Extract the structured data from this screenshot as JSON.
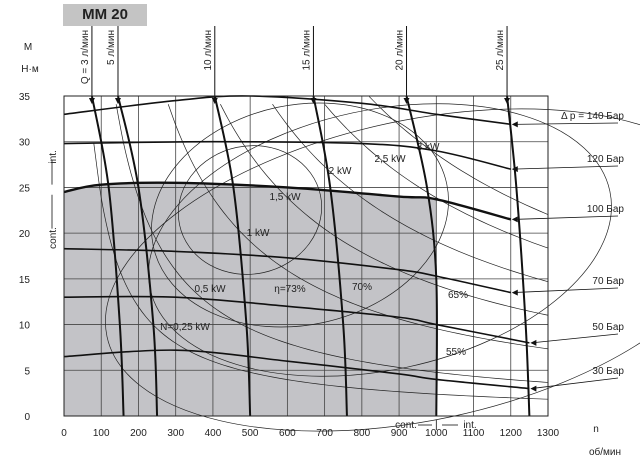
{
  "chart_data": {
    "type": "line",
    "title": "MM 20",
    "ylabel_top": "M",
    "ylabel_unit": "Н·м",
    "xlabel_top": "n",
    "xlabel_unit": "об/мин",
    "xlim": [
      0,
      1300
    ],
    "ylim": [
      0,
      35
    ],
    "x_ticks": [
      "0",
      "100",
      "200",
      "300",
      "400",
      "500",
      "600",
      "700",
      "800",
      "900",
      "1000",
      "1100",
      "1200",
      "1300"
    ],
    "y_ticks": [
      "0",
      "5",
      "10",
      "15",
      "20",
      "25",
      "30",
      "35"
    ],
    "region_labels": {
      "cont": "cont.",
      "int": "int."
    },
    "pressure_lines": [
      {
        "label": "Δ p = 140 Бар",
        "points": [
          [
            0,
            33.0
          ],
          [
            300,
            34.5
          ],
          [
            500,
            35.0
          ],
          [
            800,
            34.2
          ],
          [
            1000,
            33.0
          ],
          [
            1200,
            31.9
          ]
        ]
      },
      {
        "label": "120 Бар",
        "points": [
          [
            0,
            29.8
          ],
          [
            400,
            30.0
          ],
          [
            800,
            29.8
          ],
          [
            1000,
            29.0
          ],
          [
            1200,
            27.0
          ]
        ]
      },
      {
        "label": "100 Бар",
        "points": [
          [
            0,
            24.5
          ],
          [
            100,
            25.3
          ],
          [
            300,
            25.5
          ],
          [
            600,
            25.0
          ],
          [
            900,
            24.0
          ],
          [
            1000,
            23.7
          ],
          [
            1200,
            21.5
          ]
        ]
      },
      {
        "label": "70 Бар",
        "points": [
          [
            0,
            18.3
          ],
          [
            300,
            18.0
          ],
          [
            600,
            17.3
          ],
          [
            900,
            16.0
          ],
          [
            1000,
            15.3
          ],
          [
            1200,
            13.5
          ]
        ]
      },
      {
        "label": "50 Бар",
        "points": [
          [
            0,
            13.0
          ],
          [
            300,
            13.0
          ],
          [
            600,
            12.0
          ],
          [
            900,
            10.8
          ],
          [
            1000,
            10.0
          ],
          [
            1250,
            8.0
          ]
        ]
      },
      {
        "label": "30 Бар",
        "points": [
          [
            0,
            6.5
          ],
          [
            300,
            7.2
          ],
          [
            600,
            6.0
          ],
          [
            900,
            4.6
          ],
          [
            1000,
            4.0
          ],
          [
            1250,
            3.0
          ]
        ]
      }
    ],
    "flow_lines": [
      {
        "label": "Q = 3 л/мин",
        "points": [
          [
            75,
            35
          ],
          [
            120,
            25
          ],
          [
            150,
            10
          ],
          [
            160,
            0
          ]
        ]
      },
      {
        "label": "5 л/мин",
        "points": [
          [
            145,
            35
          ],
          [
            200,
            25
          ],
          [
            240,
            10
          ],
          [
            250,
            0
          ]
        ]
      },
      {
        "label": "10 л/мин",
        "points": [
          [
            405,
            35
          ],
          [
            455,
            25
          ],
          [
            490,
            10
          ],
          [
            500,
            0
          ]
        ]
      },
      {
        "label": "15 л/мин",
        "points": [
          [
            670,
            35
          ],
          [
            715,
            25
          ],
          [
            750,
            10
          ],
          [
            760,
            0
          ]
        ]
      },
      {
        "label": "20 л/мин",
        "points": [
          [
            920,
            35
          ],
          [
            975,
            25
          ],
          [
            1000,
            15
          ],
          [
            1000,
            0
          ]
        ]
      },
      {
        "label": "25 л/мин",
        "points": [
          [
            1190,
            35
          ],
          [
            1215,
            25
          ],
          [
            1240,
            10
          ],
          [
            1250,
            0
          ]
        ]
      }
    ],
    "power_labels": [
      "N=0,25 kW",
      "0,5 kW",
      "1 kW",
      "1,5 kW",
      "2 kW",
      "2,5 kW",
      "3 kW"
    ],
    "efficiency_labels": [
      "η=73%",
      "70%",
      "65%",
      "55%"
    ],
    "shaded_region": "100 Бар / 1000 об/мин"
  }
}
